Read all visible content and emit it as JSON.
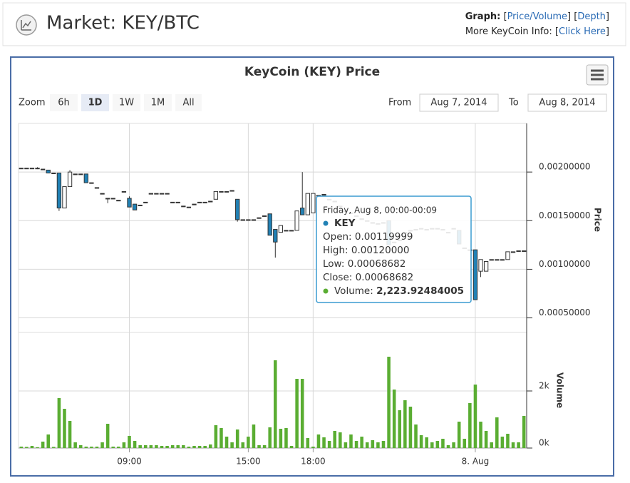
{
  "header": {
    "title": "Market: KEY/BTC",
    "graph_label": "Graph:",
    "bracket_open": "[",
    "bracket_close": "]",
    "graph_links": [
      "Price/Volume",
      "Depth"
    ],
    "info_label": "More KeyCoin Info:",
    "info_link": "Click Here"
  },
  "zoom": {
    "label": "Zoom",
    "buttons": [
      "6h",
      "1D",
      "1W",
      "1M",
      "All"
    ],
    "selected": "1D",
    "from_label": "From",
    "from_value": "Aug 7, 2014",
    "to_label": "To",
    "to_value": "Aug 8, 2014"
  },
  "tooltip": {
    "header": "Friday, Aug 8, 00:00-00:09",
    "series": "KEY",
    "rows": [
      [
        "Open:",
        "0.00119999"
      ],
      [
        "High:",
        "0.00120000"
      ],
      [
        "Low:",
        "0.00068682"
      ],
      [
        "Close:",
        "0.00068682"
      ]
    ],
    "volume_label": "Volume:",
    "volume_value": "2,223.92484005"
  },
  "chart_data": {
    "type": "candlestick",
    "title": "KeyCoin (KEY) Price",
    "y_label": "Price",
    "y2_label": "Volume",
    "up_color": "#ffffff",
    "down_color": "#2181b5",
    "volume_color": "#5aad32",
    "grid": true,
    "x": [
      "05:40",
      "05:50",
      "06:00",
      "06:10",
      "06:20",
      "06:30",
      "06:40",
      "06:50",
      "07:00",
      "07:10",
      "07:20",
      "07:30",
      "07:40",
      "07:50",
      "08:00",
      "08:10",
      "08:20",
      "08:30",
      "08:40",
      "08:50",
      "09:00",
      "09:10",
      "09:20",
      "09:40",
      "10:00",
      "10:20",
      "10:30",
      "10:50",
      "11:10",
      "11:30",
      "11:40",
      "12:00",
      "12:20",
      "12:40",
      "12:50",
      "13:10",
      "13:30",
      "13:50",
      "14:00",
      "14:20",
      "14:30",
      "14:50",
      "15:00",
      "15:10",
      "15:20",
      "15:30",
      "15:50",
      "16:10",
      "16:20",
      "16:40",
      "17:00",
      "17:10",
      "17:30",
      "17:50",
      "18:00",
      "18:10",
      "18:20",
      "18:40",
      "18:50",
      "19:00",
      "19:20",
      "19:30",
      "19:50",
      "20:00",
      "20:20",
      "20:30",
      "20:40",
      "21:00",
      "21:10",
      "21:20",
      "21:40",
      "21:50",
      "22:00",
      "22:10",
      "22:20",
      "22:30",
      "22:40",
      "22:50",
      "23:00",
      "23:10",
      "23:20",
      "23:30",
      "23:40",
      "23:50",
      "00:00",
      "00:10",
      "00:20",
      "00:30",
      "00:40",
      "00:50",
      "01:00",
      "01:10",
      "01:20",
      "01:30"
    ],
    "ohlc": [
      [
        0.00204,
        0.00204,
        0.00204,
        0.00204
      ],
      [
        0.00204,
        0.00204,
        0.00204,
        0.00204
      ],
      [
        0.00204,
        0.00204,
        0.00204,
        0.00204
      ],
      [
        0.00204,
        0.00205,
        0.00203,
        0.00204
      ],
      [
        0.00203,
        0.00203,
        0.00203,
        0.00203
      ],
      [
        0.00202,
        0.00202,
        0.00199,
        0.00199
      ],
      [
        0.00199,
        0.00199,
        0.00199,
        0.00199
      ],
      [
        0.00199,
        0.00199,
        0.0016,
        0.00163
      ],
      [
        0.00163,
        0.00185,
        0.00163,
        0.00185
      ],
      [
        0.00185,
        0.00202,
        0.00185,
        0.002
      ],
      [
        0.00198,
        0.00198,
        0.00198,
        0.00198
      ],
      [
        0.00198,
        0.00198,
        0.00198,
        0.00198
      ],
      [
        0.00198,
        0.00198,
        0.00189,
        0.00189
      ],
      [
        0.00189,
        0.00189,
        0.00189,
        0.00189
      ],
      [
        0.00184,
        0.00184,
        0.00184,
        0.00184
      ],
      [
        0.00178,
        0.00178,
        0.00178,
        0.00178
      ],
      [
        0.00173,
        0.00173,
        0.00168,
        0.00173
      ],
      [
        0.00173,
        0.00173,
        0.00173,
        0.00173
      ],
      [
        0.00171,
        0.00171,
        0.00171,
        0.00171
      ],
      [
        0.0018,
        0.0018,
        0.0018,
        0.0018
      ],
      [
        0.00173,
        0.00175,
        0.00164,
        0.00164
      ],
      [
        0.00167,
        0.00167,
        0.00161,
        0.00161
      ],
      [
        0.00166,
        0.00166,
        0.00166,
        0.00166
      ],
      [
        0.00169,
        0.00169,
        0.00169,
        0.00169
      ],
      [
        0.00178,
        0.00178,
        0.00178,
        0.00178
      ],
      [
        0.00178,
        0.00178,
        0.00178,
        0.00178
      ],
      [
        0.00178,
        0.00178,
        0.00178,
        0.00178
      ],
      [
        0.00178,
        0.00178,
        0.00178,
        0.00178
      ],
      [
        0.00169,
        0.00169,
        0.00169,
        0.00169
      ],
      [
        0.00169,
        0.00169,
        0.00169,
        0.00169
      ],
      [
        0.00165,
        0.00165,
        0.00165,
        0.00165
      ],
      [
        0.00164,
        0.00164,
        0.00164,
        0.00164
      ],
      [
        0.00167,
        0.00167,
        0.00167,
        0.00167
      ],
      [
        0.00169,
        0.00169,
        0.00169,
        0.00169
      ],
      [
        0.00169,
        0.00169,
        0.00169,
        0.00169
      ],
      [
        0.0017,
        0.0017,
        0.0017,
        0.0017
      ],
      [
        0.00172,
        0.0018,
        0.00172,
        0.0018
      ],
      [
        0.0018,
        0.0018,
        0.0018,
        0.0018
      ],
      [
        0.0018,
        0.0018,
        0.0018,
        0.0018
      ],
      [
        0.00181,
        0.00181,
        0.00181,
        0.00181
      ],
      [
        0.00172,
        0.00172,
        0.00149,
        0.00151
      ],
      [
        0.00151,
        0.00151,
        0.00151,
        0.00151
      ],
      [
        0.00151,
        0.00151,
        0.00151,
        0.00151
      ],
      [
        0.00151,
        0.00151,
        0.00151,
        0.00151
      ],
      [
        0.00153,
        0.00153,
        0.00153,
        0.00153
      ],
      [
        0.00155,
        0.00155,
        0.00155,
        0.00155
      ],
      [
        0.00157,
        0.00157,
        0.00135,
        0.00135
      ],
      [
        0.00141,
        0.00141,
        0.00112,
        0.00128
      ],
      [
        0.00138,
        0.00145,
        0.00138,
        0.00145
      ],
      [
        0.0014,
        0.0014,
        0.0014,
        0.0014
      ],
      [
        0.0014,
        0.0014,
        0.0014,
        0.0014
      ],
      [
        0.0014,
        0.0016,
        0.0014,
        0.0016
      ],
      [
        0.00163,
        0.002,
        0.00156,
        0.00156
      ],
      [
        0.00156,
        0.00178,
        0.00156,
        0.00178
      ],
      [
        0.00158,
        0.00178,
        0.00158,
        0.00178
      ],
      [
        0.00176,
        0.00176,
        0.00176,
        0.00176
      ],
      [
        0.00177,
        0.00177,
        0.00177,
        0.00177
      ],
      [
        0.00172,
        0.00172,
        0.00172,
        0.00172
      ],
      [
        0.0017,
        0.0017,
        0.0017,
        0.0017
      ],
      [
        0.00165,
        0.00165,
        0.00165,
        0.00165
      ],
      [
        0.0016,
        0.0016,
        0.0016,
        0.0016
      ],
      [
        0.00158,
        0.00158,
        0.00158,
        0.00158
      ],
      [
        0.00155,
        0.00155,
        0.00155,
        0.00155
      ],
      [
        0.00152,
        0.00152,
        0.00152,
        0.00152
      ],
      [
        0.0015,
        0.0015,
        0.0015,
        0.0015
      ],
      [
        0.00148,
        0.00148,
        0.00148,
        0.00148
      ],
      [
        0.00147,
        0.00147,
        0.00147,
        0.00147
      ],
      [
        0.00148,
        0.00148,
        0.00148,
        0.00148
      ],
      [
        0.0015,
        0.0015,
        0.00125,
        0.00125
      ],
      [
        0.00128,
        0.00128,
        0.00128,
        0.00128
      ],
      [
        0.0013,
        0.0013,
        0.0013,
        0.0013
      ],
      [
        0.00138,
        0.00138,
        0.00138,
        0.00138
      ],
      [
        0.0014,
        0.0014,
        0.0014,
        0.0014
      ],
      [
        0.00141,
        0.00141,
        0.00141,
        0.00141
      ],
      [
        0.00142,
        0.00142,
        0.00142,
        0.00142
      ],
      [
        0.00141,
        0.00141,
        0.00141,
        0.00141
      ],
      [
        0.00142,
        0.00142,
        0.00142,
        0.00142
      ],
      [
        0.00142,
        0.00142,
        0.00142,
        0.00142
      ],
      [
        0.00141,
        0.00141,
        0.00141,
        0.00141
      ],
      [
        0.00138,
        0.00138,
        0.00138,
        0.00138
      ],
      [
        0.00142,
        0.00142,
        0.00142,
        0.00142
      ],
      [
        0.0014,
        0.0014,
        0.00126,
        0.00126
      ],
      [
        0.00122,
        0.00122,
        0.00122,
        0.00122
      ],
      [
        0.0012,
        0.0012,
        0.0012,
        0.0012
      ],
      [
        0.00119999,
        0.0012,
        0.00068682,
        0.00068682
      ],
      [
        0.00098,
        0.0011,
        0.00092,
        0.0011
      ],
      [
        0.00098,
        0.00108,
        0.00098,
        0.00108
      ],
      [
        0.0011,
        0.0011,
        0.0011,
        0.0011
      ],
      [
        0.0011,
        0.0011,
        0.0011,
        0.0011
      ],
      [
        0.0011,
        0.0011,
        0.0011,
        0.0011
      ],
      [
        0.0011,
        0.00118,
        0.0011,
        0.00118
      ],
      [
        0.00118,
        0.00118,
        0.00118,
        0.00118
      ],
      [
        0.00119,
        0.00119,
        0.00119,
        0.00119
      ],
      [
        0.00119,
        0.00119,
        0.00119,
        0.00119
      ]
    ],
    "volume": [
      50,
      40,
      75,
      30,
      225,
      475,
      40,
      1750,
      1375,
      950,
      200,
      100,
      50,
      50,
      50,
      200,
      850,
      50,
      50,
      200,
      425,
      250,
      100,
      100,
      100,
      100,
      75,
      75,
      100,
      100,
      100,
      50,
      75,
      75,
      75,
      125,
      800,
      700,
      400,
      200,
      650,
      200,
      400,
      825,
      100,
      100,
      725,
      3075,
      675,
      700,
      75,
      2425,
      2425,
      350,
      50,
      475,
      375,
      250,
      600,
      550,
      200,
      475,
      250,
      400,
      200,
      275,
      200,
      250,
      3200,
      2050,
      1325,
      1675,
      1450,
      825,
      450,
      375,
      200,
      250,
      325,
      100,
      200,
      925,
      325,
      1575,
      2223.92484005,
      925,
      600,
      200,
      1075,
      400,
      500,
      200,
      200,
      1125
    ],
    "xticks": [
      "09:00",
      "15:00",
      "18:00",
      {
        "value": "00:00",
        "label": "8. Aug"
      }
    ],
    "ylim": [
      0.00035,
      0.0025
    ],
    "yticks": [
      {
        "value": 0.0005,
        "label": "0.00050000"
      },
      {
        "value": 0.001,
        "label": "0.00100000"
      },
      {
        "value": 0.0015,
        "label": "0.00150000"
      },
      {
        "value": 0.002,
        "label": "0.00200000"
      }
    ],
    "y2lim": [
      0,
      4050
    ],
    "y2ticks": [
      {
        "value": 0,
        "label": "0k"
      },
      {
        "value": 2000,
        "label": "2k"
      }
    ]
  }
}
